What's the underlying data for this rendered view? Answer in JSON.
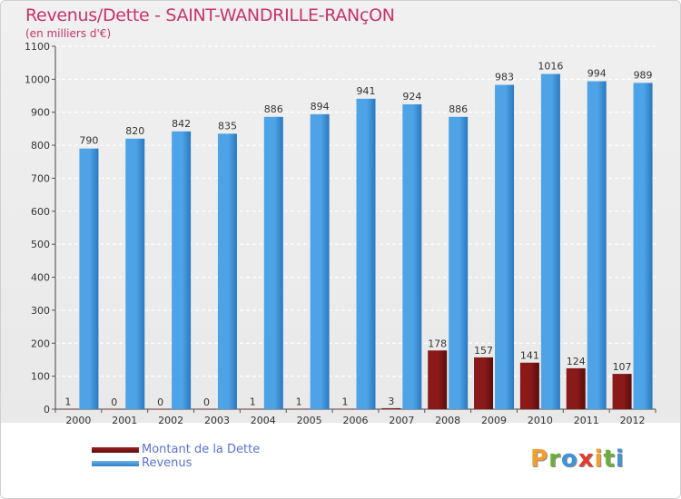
{
  "chart_data": {
    "type": "bar",
    "title": "Revenus/Dette - SAINT-WANDRILLE-RANçON",
    "subtitle": "(en milliers d'€)",
    "categories": [
      "2000",
      "2001",
      "2002",
      "2003",
      "2004",
      "2005",
      "2006",
      "2007",
      "2008",
      "2009",
      "2010",
      "2011",
      "2012"
    ],
    "series": [
      {
        "name": "Montant de la Dette",
        "color": "#7a1616",
        "values": [
          1,
          0,
          0,
          0,
          1,
          1,
          1,
          3,
          178,
          157,
          141,
          124,
          107
        ]
      },
      {
        "name": "Revenus",
        "color": "#3f93d9",
        "values": [
          790,
          820,
          842,
          835,
          886,
          894,
          941,
          924,
          886,
          983,
          1016,
          994,
          989
        ]
      }
    ],
    "ylim": [
      0,
      1100
    ],
    "yticks": [
      0,
      100,
      200,
      300,
      400,
      500,
      600,
      700,
      800,
      900,
      1000,
      1100
    ],
    "grid": true,
    "legend_position": "bottom-left"
  },
  "branding": {
    "logo_letters": [
      "P",
      "r",
      "o",
      "x",
      "i",
      "t",
      "i"
    ],
    "logo_colors": [
      "#f0a030",
      "#6cae3a",
      "#3f93d9",
      "#e23c2e",
      "#f0a030",
      "#6cae3a",
      "#3f93d9"
    ]
  }
}
